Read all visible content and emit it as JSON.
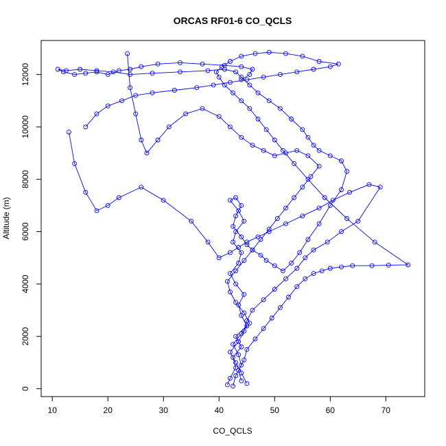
{
  "chart_data": {
    "type": "scatter",
    "title": "ORCAS RF01-6 CO_QCLS",
    "xlabel": "CO_QCLS",
    "ylabel": "Altitude (m)",
    "xlim": [
      8,
      77
    ],
    "ylim": [
      -300,
      13300
    ],
    "xticks": [
      10,
      20,
      30,
      40,
      50,
      60,
      70
    ],
    "yticks": [
      0,
      2000,
      4000,
      6000,
      8000,
      10000,
      12000
    ],
    "grid": false,
    "legend": "none",
    "series_color": "#0000ff",
    "mode": "lines+points",
    "series": [
      {
        "x": [
          41.5,
          42.0,
          43.0,
          42.5,
          44.0,
          43.0,
          45.0,
          44.0,
          43.5,
          44.5,
          43.0,
          42.0,
          43.5,
          44.0,
          42.5,
          43.0,
          44.5,
          43.5,
          42.0,
          43.0,
          44.0,
          43.0,
          42.5,
          44.0,
          45.0,
          46.0,
          47.5,
          48.5,
          50.0,
          51.5,
          53.0,
          54.5,
          56.0,
          58.0,
          60.0,
          62.0,
          63.0,
          62.0,
          60.0,
          58.0,
          57.0,
          56.0,
          55.0,
          53.0,
          51.0,
          49.0,
          47.0,
          45.5,
          44.0,
          43.0,
          41.0,
          38.0,
          33.0,
          28.0,
          24.0,
          21.0,
          18.0,
          15.0,
          12.5,
          11.0,
          12.0,
          14.0,
          16.0,
          18.0,
          20.0,
          22.0,
          24.0,
          26.0,
          29.0,
          33.0,
          37.0,
          41.0,
          44.0,
          46.0,
          45.5,
          44.0
        ],
        "y": [
          150,
          400,
          800,
          1200,
          1600,
          2000,
          2400,
          2800,
          3200,
          3600,
          4000,
          4400,
          4800,
          5200,
          5600,
          6000,
          6400,
          6800,
          7200,
          7300,
          7000,
          6600,
          6200,
          5800,
          5500,
          5300,
          5100,
          4900,
          4700,
          4500,
          4800,
          5200,
          5700,
          6300,
          7000,
          7600,
          8300,
          8700,
          8900,
          9100,
          9300,
          9600,
          9900,
          10300,
          10700,
          11000,
          11300,
          11600,
          11900,
          12100,
          12200,
          12150,
          12100,
          12050,
          12000,
          12100,
          12150,
          12200,
          12150,
          12200,
          12100,
          12000,
          12050,
          12100,
          12000,
          12150,
          12200,
          12300,
          12400,
          12450,
          12400,
          12350,
          12300,
          12200,
          12000,
          11800
        ]
      },
      {
        "x": [
          45.0,
          44.0,
          43.0,
          42.0,
          43.5,
          44.5,
          45.0,
          46.0,
          48.0,
          50.0,
          52.0,
          54.0,
          55.5,
          57.0,
          59.5,
          62.0,
          65.0,
          69.0,
          67.0,
          63.5,
          60.5,
          58.0,
          55.0,
          52.0,
          49.0,
          47.0,
          45.0,
          43.5,
          42.0,
          40.0,
          38.0,
          35.0,
          30.0,
          26.0,
          22.0,
          20.0,
          18.0,
          16.0,
          14.0,
          13.0
        ],
        "y": [
          200,
          600,
          1000,
          1400,
          1800,
          2200,
          2600,
          3000,
          3400,
          3800,
          4200,
          4600,
          5000,
          5300,
          5600,
          6000,
          6400,
          7700,
          7800,
          7500,
          7200,
          6900,
          6600,
          6300,
          6000,
          5800,
          5600,
          5400,
          5200,
          5000,
          5600,
          6400,
          7200,
          7700,
          7300,
          7000,
          6800,
          7500,
          8600,
          9800
        ]
      },
      {
        "x": [
          44.0,
          43.5,
          44.5,
          45.0,
          46.5,
          48.0,
          49.5,
          51.0,
          52.5,
          54.0,
          55.5,
          57.0,
          58.5,
          60.0,
          62.0,
          64.0,
          67.5,
          70.5,
          74.0,
          68.0,
          63.0,
          59.0,
          56.0,
          53.5,
          51.5,
          50.0,
          48.5,
          47.0,
          45.5,
          44.0,
          42.5,
          41.0,
          40.0,
          39.5,
          40.5,
          42.0,
          44.0,
          46.5,
          49.0,
          52.0,
          55.0,
          58.0,
          61.5,
          60.0,
          57.0,
          54.0,
          51.0,
          48.0,
          45.0,
          42.0,
          39.0,
          36.0,
          32.0,
          28.0,
          25.0,
          22.5,
          20.0,
          18.0,
          16.0
        ],
        "y": [
          300,
          700,
          1100,
          1500,
          1900,
          2300,
          2700,
          3100,
          3500,
          3900,
          4200,
          4400,
          4500,
          4600,
          4650,
          4700,
          4700,
          4720,
          4730,
          5600,
          6500,
          7300,
          8000,
          8600,
          9100,
          9500,
          9900,
          10300,
          10700,
          11000,
          11300,
          11600,
          11900,
          12100,
          12300,
          12500,
          12700,
          12800,
          12850,
          12800,
          12700,
          12500,
          12400,
          12300,
          12200,
          12100,
          12000,
          11900,
          11800,
          11700,
          11600,
          11500,
          11400,
          11300,
          11200,
          11000,
          10800,
          10500,
          10000
        ]
      },
      {
        "x": [
          42.5,
          43.0,
          44.0,
          43.5,
          42.5,
          44.0,
          45.5,
          44.5,
          43.0,
          42.0,
          41.5,
          43.0,
          44.5,
          46.0,
          47.5,
          49.0,
          50.5,
          52.0,
          53.5,
          55.0,
          56.5,
          58.0,
          56.0,
          54.0,
          52.0,
          50.0,
          48.0,
          46.0,
          44.0,
          42.0,
          40.0,
          37.0,
          34.0,
          31.0,
          29.0,
          27.0,
          26.0,
          25.0,
          24.0,
          23.5
        ],
        "y": [
          100,
          500,
          900,
          1300,
          1700,
          2100,
          2500,
          2900,
          3300,
          3700,
          4100,
          4500,
          4900,
          5300,
          5700,
          6100,
          6500,
          6900,
          7300,
          7700,
          8100,
          8500,
          8900,
          9100,
          9000,
          8900,
          9100,
          9300,
          9600,
          10000,
          10400,
          10700,
          10500,
          10000,
          9500,
          9000,
          9500,
          10500,
          11500,
          12800
        ]
      }
    ]
  }
}
